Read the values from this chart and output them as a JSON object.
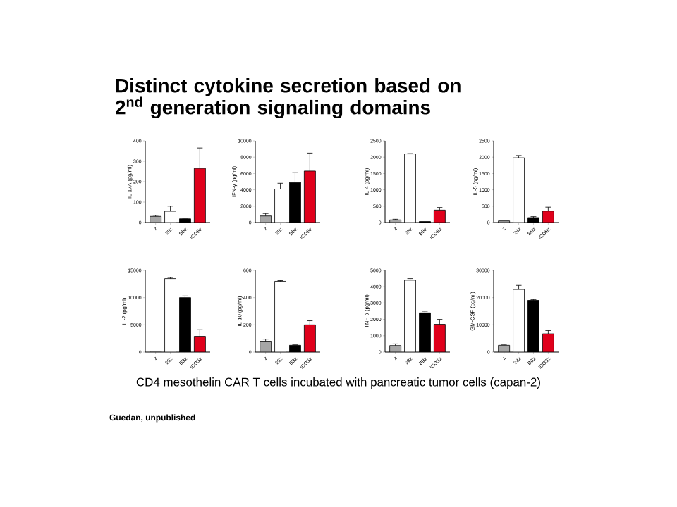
{
  "chart_data": [
    {
      "type": "other",
      "title": "Distinct cytokine secretion based on\n2$^{nd}$ generation signaling domains",
      "annotations": [
        "CD4 mesothelin CAR T cells incubated with pancreatic tumor cells (capan-2)",
        "**Guedan, unpublished**"
      ]
    },
    {
      "type": "bar",
      "ylabel": "IL-17A (pg/ml)",
      "categories": [
        "z",
        "28z",
        "BBz",
        "ICOSz"
      ],
      "values": [
        30,
        55,
        18,
        265
      ],
      "errors": [
        5,
        25,
        3,
        100
      ],
      "colors": [
        "#a6a6a6",
        "#ffffff",
        "#000000",
        "#e0001b"
      ],
      "ylim": [
        0,
        400
      ],
      "yticks": [
        0,
        100,
        200,
        300,
        400
      ]
    },
    {
      "type": "bar",
      "ylabel": "IFN-γ (pg/ml)",
      "categories": [
        "z",
        "28z",
        "BBz",
        "ICOSz"
      ],
      "values": [
        800,
        4100,
        4900,
        6300
      ],
      "errors": [
        300,
        700,
        1200,
        2200
      ],
      "colors": [
        "#a6a6a6",
        "#ffffff",
        "#000000",
        "#e0001b"
      ],
      "ylim": [
        0,
        10000
      ],
      "yticks": [
        0,
        2000,
        4000,
        6000,
        8000,
        10000
      ]
    },
    {
      "type": "bar",
      "ylabel": "IL-4 (pg/ml)",
      "categories": [
        "z",
        "28z",
        "BBz",
        "ICOSz"
      ],
      "values": [
        80,
        2100,
        30,
        380
      ],
      "errors": [
        20,
        10,
        null,
        80
      ],
      "colors": [
        "#a6a6a6",
        "#ffffff",
        "#000000",
        "#e0001b"
      ],
      "ylim": [
        0,
        2500
      ],
      "yticks": [
        0,
        500,
        1000,
        1500,
        2000,
        2500
      ]
    },
    {
      "type": "bar",
      "ylabel": "IL-5 (pg/ml)",
      "categories": [
        "z",
        "28z",
        "BBz",
        "ICOSz"
      ],
      "values": [
        50,
        1980,
        150,
        350
      ],
      "errors": [
        null,
        70,
        30,
        120
      ],
      "colors": [
        "#a6a6a6",
        "#ffffff",
        "#000000",
        "#e0001b"
      ],
      "ylim": [
        0,
        2500
      ],
      "yticks": [
        0,
        500,
        1000,
        1500,
        2000,
        2500
      ]
    },
    {
      "type": "bar",
      "ylabel": "IL-2 (pg/ml)",
      "categories": [
        "z",
        "28z",
        "BBz",
        "ICOSz"
      ],
      "values": [
        200,
        13500,
        10000,
        2900
      ],
      "errors": [
        null,
        200,
        300,
        1200
      ],
      "colors": [
        "#a6a6a6",
        "#ffffff",
        "#000000",
        "#e0001b"
      ],
      "ylim": [
        0,
        15000
      ],
      "yticks": [
        0,
        5000,
        10000,
        15000
      ]
    },
    {
      "type": "bar",
      "ylabel": "IL-10 (pg/ml)",
      "categories": [
        "z",
        "28z",
        "BBz",
        "ICOSz"
      ],
      "values": [
        80,
        520,
        50,
        200
      ],
      "errors": [
        15,
        5,
        3,
        30
      ],
      "colors": [
        "#a6a6a6",
        "#ffffff",
        "#000000",
        "#e0001b"
      ],
      "ylim": [
        0,
        600
      ],
      "yticks": [
        0,
        200,
        400,
        600
      ]
    },
    {
      "type": "bar",
      "ylabel": "TNF-α (pg/ml)",
      "categories": [
        "z",
        "28z",
        "BBz",
        "ICOSz"
      ],
      "values": [
        400,
        4400,
        2400,
        1700
      ],
      "errors": [
        100,
        100,
        100,
        300
      ],
      "colors": [
        "#a6a6a6",
        "#ffffff",
        "#000000",
        "#e0001b"
      ],
      "ylim": [
        0,
        5000
      ],
      "yticks": [
        0,
        1000,
        2000,
        3000,
        4000,
        5000
      ]
    },
    {
      "type": "bar",
      "ylabel": "GM-CSF (pg/ml)",
      "categories": [
        "z",
        "28z",
        "BBz",
        "ICOSz"
      ],
      "values": [
        2500,
        23000,
        19000,
        6700
      ],
      "errors": [
        300,
        1500,
        300,
        1200
      ],
      "colors": [
        "#a6a6a6",
        "#ffffff",
        "#000000",
        "#e0001b"
      ],
      "ylim": [
        0,
        30000
      ],
      "yticks": [
        0,
        10000,
        20000,
        30000
      ]
    }
  ]
}
